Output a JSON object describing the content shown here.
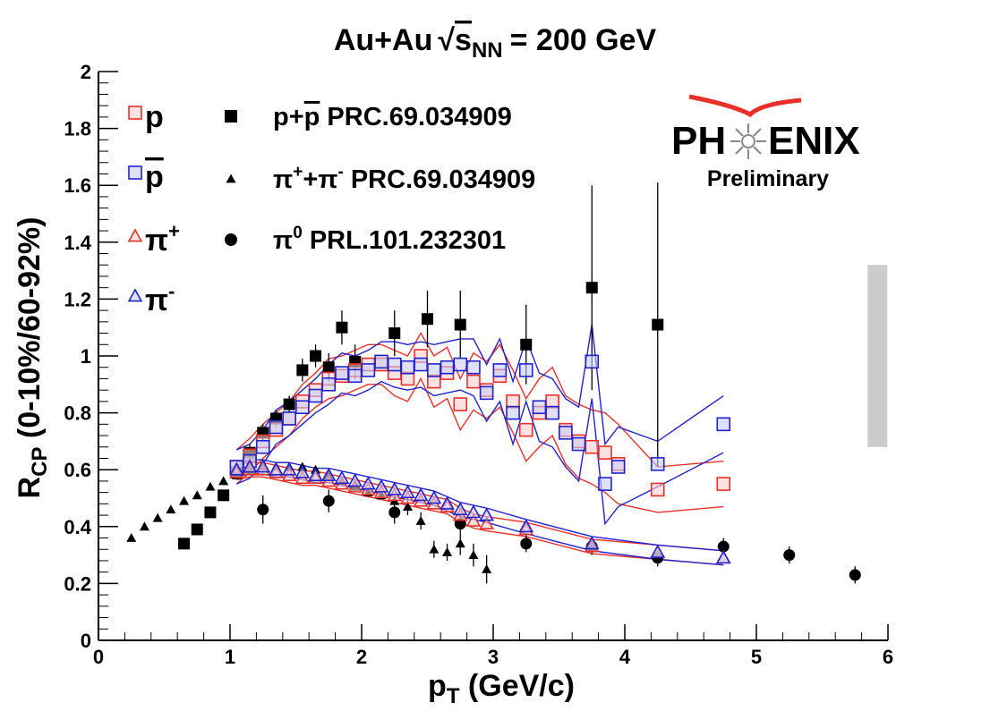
{
  "title": {
    "prefix": "Au+Au",
    "sqrt_s": "s",
    "sub": "NN",
    "suffix": "= 200 GeV"
  },
  "axes": {
    "x_label": {
      "main": "p",
      "sub": "T",
      "rest": " (GeV/c)"
    },
    "y_label": {
      "main": "R",
      "sub": "CP",
      "rest": " (0-10%/60-92%)"
    }
  },
  "logo": {
    "left": "PH",
    "right": "ENIX",
    "sub": "Preliminary",
    "color": "#e8302a"
  },
  "colors": {
    "red": "#e8302a",
    "blue": "#2222cc",
    "grey": "#cccccc",
    "black": "#000000"
  },
  "chart_data": {
    "type": "scatter",
    "xlim": [
      0,
      6
    ],
    "ylim": [
      0,
      2
    ],
    "x_ticks": [
      "0",
      "1",
      "2",
      "3",
      "4",
      "5",
      "6"
    ],
    "y_ticks": [
      "0",
      "0.2",
      "0.4",
      "0.6",
      "0.8",
      "1",
      "1.2",
      "1.4",
      "1.6",
      "1.8",
      "2"
    ],
    "grid": false,
    "legend_left": [
      {
        "label": "p",
        "marker": "open-square",
        "color": "#e8302a",
        "bar": false,
        "sup": ""
      },
      {
        "label": "p",
        "marker": "open-square",
        "color": "#2222cc",
        "bar": true,
        "sup": ""
      },
      {
        "label": "π",
        "marker": "open-triangle",
        "color": "#e8302a",
        "bar": false,
        "sup": "+"
      },
      {
        "label": "π",
        "marker": "open-triangle",
        "color": "#2222cc",
        "bar": false,
        "sup": "-"
      }
    ],
    "legend_right": [
      {
        "marker": "filled-square",
        "text1": "p+",
        "bar_p": "p",
        "text2": " PRC.69.034909"
      },
      {
        "marker": "filled-triangle",
        "text1": "π",
        "sup1": "+",
        "text2": "+π",
        "sup2": "-",
        "text3": " PRC.69.034909"
      },
      {
        "marker": "filled-circle",
        "text1": "π",
        "sup1": "0",
        "text2": " PRL.101.232301"
      }
    ],
    "systematic_box": {
      "x": 5.92,
      "y_low": 0.68,
      "y_high": 1.32
    },
    "series": [
      {
        "name": "p+p̄ PRC.69.034909",
        "marker": "filled-square",
        "color": "#000000",
        "points": [
          {
            "x": 0.65,
            "y": 0.34,
            "err": 0.02
          },
          {
            "x": 0.75,
            "y": 0.39,
            "err": 0.02
          },
          {
            "x": 0.85,
            "y": 0.45,
            "err": 0.02
          },
          {
            "x": 0.95,
            "y": 0.51,
            "err": 0.02
          },
          {
            "x": 1.05,
            "y": 0.59,
            "err": 0.02
          },
          {
            "x": 1.15,
            "y": 0.66,
            "err": 0.03
          },
          {
            "x": 1.25,
            "y": 0.73,
            "err": 0.03
          },
          {
            "x": 1.35,
            "y": 0.78,
            "err": 0.03
          },
          {
            "x": 1.45,
            "y": 0.83,
            "err": 0.03
          },
          {
            "x": 1.55,
            "y": 0.95,
            "err": 0.04
          },
          {
            "x": 1.65,
            "y": 1.0,
            "err": 0.04
          },
          {
            "x": 1.75,
            "y": 0.96,
            "err": 0.05
          },
          {
            "x": 1.85,
            "y": 1.1,
            "err": 0.06
          },
          {
            "x": 1.95,
            "y": 0.98,
            "err": 0.06
          },
          {
            "x": 2.25,
            "y": 1.08,
            "err": 0.08
          },
          {
            "x": 2.5,
            "y": 1.13,
            "err": 0.1
          },
          {
            "x": 2.75,
            "y": 1.11,
            "err": 0.12
          },
          {
            "x": 3.25,
            "y": 1.04,
            "err": 0.14
          },
          {
            "x": 3.75,
            "y": 1.24,
            "err": 0.36
          },
          {
            "x": 4.25,
            "y": 1.11,
            "err": 0.5
          }
        ]
      },
      {
        "name": "π⁺+π⁻ PRC.69.034909",
        "marker": "filled-triangle",
        "color": "#000000",
        "points": [
          {
            "x": 0.25,
            "y": 0.36,
            "err": 0.0
          },
          {
            "x": 0.35,
            "y": 0.4,
            "err": 0.0
          },
          {
            "x": 0.45,
            "y": 0.43,
            "err": 0.0
          },
          {
            "x": 0.55,
            "y": 0.46,
            "err": 0.0
          },
          {
            "x": 0.65,
            "y": 0.49,
            "err": 0.0
          },
          {
            "x": 0.75,
            "y": 0.51,
            "err": 0.0
          },
          {
            "x": 0.85,
            "y": 0.54,
            "err": 0.0
          },
          {
            "x": 0.95,
            "y": 0.56,
            "err": 0.0
          },
          {
            "x": 1.05,
            "y": 0.58,
            "err": 0.0
          },
          {
            "x": 1.15,
            "y": 0.6,
            "err": 0.0
          },
          {
            "x": 1.25,
            "y": 0.61,
            "err": 0.0
          },
          {
            "x": 1.35,
            "y": 0.61,
            "err": 0.0
          },
          {
            "x": 1.45,
            "y": 0.61,
            "err": 0.0
          },
          {
            "x": 1.55,
            "y": 0.61,
            "err": 0.0
          },
          {
            "x": 1.65,
            "y": 0.6,
            "err": 0.0
          },
          {
            "x": 1.75,
            "y": 0.58,
            "err": 0.0
          },
          {
            "x": 1.85,
            "y": 0.56,
            "err": 0.0
          },
          {
            "x": 1.95,
            "y": 0.54,
            "err": 0.0
          },
          {
            "x": 2.05,
            "y": 0.52,
            "err": 0.0
          },
          {
            "x": 2.15,
            "y": 0.51,
            "err": 0.0
          },
          {
            "x": 2.25,
            "y": 0.49,
            "err": 0.0
          },
          {
            "x": 2.35,
            "y": 0.47,
            "err": 0.03
          },
          {
            "x": 2.45,
            "y": 0.42,
            "err": 0.03
          },
          {
            "x": 2.55,
            "y": 0.32,
            "err": 0.03
          },
          {
            "x": 2.65,
            "y": 0.31,
            "err": 0.03
          },
          {
            "x": 2.75,
            "y": 0.34,
            "err": 0.04
          },
          {
            "x": 2.85,
            "y": 0.3,
            "err": 0.04
          },
          {
            "x": 2.95,
            "y": 0.25,
            "err": 0.05
          }
        ]
      },
      {
        "name": "π⁰ PRL.101.232301",
        "marker": "filled-circle",
        "color": "#000000",
        "points": [
          {
            "x": 1.25,
            "y": 0.46,
            "err": 0.05
          },
          {
            "x": 1.75,
            "y": 0.49,
            "err": 0.04
          },
          {
            "x": 2.25,
            "y": 0.45,
            "err": 0.04
          },
          {
            "x": 2.75,
            "y": 0.41,
            "err": 0.03
          },
          {
            "x": 3.25,
            "y": 0.34,
            "err": 0.03
          },
          {
            "x": 3.75,
            "y": 0.33,
            "err": 0.03
          },
          {
            "x": 4.25,
            "y": 0.29,
            "err": 0.03
          },
          {
            "x": 4.75,
            "y": 0.33,
            "err": 0.03
          },
          {
            "x": 5.25,
            "y": 0.3,
            "err": 0.03
          },
          {
            "x": 5.75,
            "y": 0.23,
            "err": 0.03
          }
        ]
      },
      {
        "name": "p",
        "marker": "open-square",
        "color": "#e8302a",
        "points": [
          {
            "x": 1.05,
            "y": 0.61,
            "err": 0.02
          },
          {
            "x": 1.15,
            "y": 0.65,
            "err": 0.02
          },
          {
            "x": 1.25,
            "y": 0.7,
            "err": 0.02
          },
          {
            "x": 1.35,
            "y": 0.74,
            "err": 0.02
          },
          {
            "x": 1.45,
            "y": 0.78,
            "err": 0.02
          },
          {
            "x": 1.55,
            "y": 0.84,
            "err": 0.02
          },
          {
            "x": 1.65,
            "y": 0.88,
            "err": 0.02
          },
          {
            "x": 1.75,
            "y": 0.92,
            "err": 0.03
          },
          {
            "x": 1.85,
            "y": 0.93,
            "err": 0.03
          },
          {
            "x": 1.95,
            "y": 0.95,
            "err": 0.03
          },
          {
            "x": 2.05,
            "y": 0.97,
            "err": 0.03
          },
          {
            "x": 2.15,
            "y": 0.97,
            "err": 0.03
          },
          {
            "x": 2.25,
            "y": 0.94,
            "err": 0.04
          },
          {
            "x": 2.35,
            "y": 0.92,
            "err": 0.04
          },
          {
            "x": 2.45,
            "y": 1.0,
            "err": 0.04
          },
          {
            "x": 2.55,
            "y": 0.91,
            "err": 0.05
          },
          {
            "x": 2.65,
            "y": 0.94,
            "err": 0.05
          },
          {
            "x": 2.75,
            "y": 0.83,
            "err": 0.05
          },
          {
            "x": 2.85,
            "y": 0.91,
            "err": 0.06
          },
          {
            "x": 2.95,
            "y": 0.88,
            "err": 0.06
          },
          {
            "x": 3.05,
            "y": 0.93,
            "err": 0.07
          },
          {
            "x": 3.15,
            "y": 0.84,
            "err": 0.07
          },
          {
            "x": 3.25,
            "y": 0.74,
            "err": 0.07
          },
          {
            "x": 3.35,
            "y": 0.8,
            "err": 0.08
          },
          {
            "x": 3.45,
            "y": 0.84,
            "err": 0.08
          },
          {
            "x": 3.55,
            "y": 0.74,
            "err": 0.08
          },
          {
            "x": 3.65,
            "y": 0.7,
            "err": 0.09
          },
          {
            "x": 3.75,
            "y": 0.68,
            "err": 0.09
          },
          {
            "x": 3.85,
            "y": 0.66,
            "err": 0.1
          },
          {
            "x": 3.95,
            "y": 0.62,
            "err": 0.1
          },
          {
            "x": 4.25,
            "y": 0.53,
            "err": 0.04
          },
          {
            "x": 4.75,
            "y": 0.55,
            "err": 0.04
          }
        ]
      },
      {
        "name": "p̄",
        "marker": "open-square",
        "color": "#2222cc",
        "points": [
          {
            "x": 1.05,
            "y": 0.61,
            "err": 0.02
          },
          {
            "x": 1.15,
            "y": 0.63,
            "err": 0.02
          },
          {
            "x": 1.25,
            "y": 0.68,
            "err": 0.02
          },
          {
            "x": 1.35,
            "y": 0.75,
            "err": 0.02
          },
          {
            "x": 1.45,
            "y": 0.78,
            "err": 0.02
          },
          {
            "x": 1.55,
            "y": 0.82,
            "err": 0.02
          },
          {
            "x": 1.65,
            "y": 0.86,
            "err": 0.02
          },
          {
            "x": 1.75,
            "y": 0.9,
            "err": 0.03
          },
          {
            "x": 1.85,
            "y": 0.94,
            "err": 0.03
          },
          {
            "x": 1.95,
            "y": 0.93,
            "err": 0.03
          },
          {
            "x": 2.05,
            "y": 0.95,
            "err": 0.03
          },
          {
            "x": 2.15,
            "y": 0.98,
            "err": 0.03
          },
          {
            "x": 2.25,
            "y": 0.97,
            "err": 0.04
          },
          {
            "x": 2.35,
            "y": 0.96,
            "err": 0.04
          },
          {
            "x": 2.45,
            "y": 0.97,
            "err": 0.04
          },
          {
            "x": 2.55,
            "y": 0.95,
            "err": 0.05
          },
          {
            "x": 2.65,
            "y": 0.96,
            "err": 0.05
          },
          {
            "x": 2.75,
            "y": 0.97,
            "err": 0.05
          },
          {
            "x": 2.85,
            "y": 0.96,
            "err": 0.06
          },
          {
            "x": 2.95,
            "y": 0.87,
            "err": 0.06
          },
          {
            "x": 3.05,
            "y": 0.95,
            "err": 0.07
          },
          {
            "x": 3.15,
            "y": 0.8,
            "err": 0.07
          },
          {
            "x": 3.25,
            "y": 0.95,
            "err": 0.07
          },
          {
            "x": 3.35,
            "y": 0.82,
            "err": 0.08
          },
          {
            "x": 3.45,
            "y": 0.8,
            "err": 0.08
          },
          {
            "x": 3.55,
            "y": 0.73,
            "err": 0.08
          },
          {
            "x": 3.65,
            "y": 0.69,
            "err": 0.09
          },
          {
            "x": 3.75,
            "y": 0.98,
            "err": 0.09
          },
          {
            "x": 3.85,
            "y": 0.55,
            "err": 0.1
          },
          {
            "x": 3.95,
            "y": 0.61,
            "err": 0.1
          },
          {
            "x": 4.25,
            "y": 0.62,
            "err": 0.04
          },
          {
            "x": 4.75,
            "y": 0.76,
            "err": 0.06
          }
        ]
      },
      {
        "name": "π⁺",
        "marker": "open-triangle",
        "color": "#e8302a",
        "points": [
          {
            "x": 1.05,
            "y": 0.59
          },
          {
            "x": 1.15,
            "y": 0.6
          },
          {
            "x": 1.25,
            "y": 0.6
          },
          {
            "x": 1.35,
            "y": 0.59
          },
          {
            "x": 1.45,
            "y": 0.58
          },
          {
            "x": 1.55,
            "y": 0.57
          },
          {
            "x": 1.65,
            "y": 0.57
          },
          {
            "x": 1.75,
            "y": 0.56
          },
          {
            "x": 1.85,
            "y": 0.55
          },
          {
            "x": 1.95,
            "y": 0.54
          },
          {
            "x": 2.05,
            "y": 0.53
          },
          {
            "x": 2.15,
            "y": 0.52
          },
          {
            "x": 2.25,
            "y": 0.51
          },
          {
            "x": 2.35,
            "y": 0.5
          },
          {
            "x": 2.45,
            "y": 0.49
          },
          {
            "x": 2.55,
            "y": 0.48
          },
          {
            "x": 2.65,
            "y": 0.47
          },
          {
            "x": 2.75,
            "y": 0.44
          },
          {
            "x": 2.85,
            "y": 0.42
          },
          {
            "x": 2.95,
            "y": 0.41
          },
          {
            "x": 3.25,
            "y": 0.39
          },
          {
            "x": 3.75,
            "y": 0.33
          },
          {
            "x": 4.25,
            "y": 0.31
          },
          {
            "x": 4.75,
            "y": 0.29
          }
        ]
      },
      {
        "name": "π⁻",
        "marker": "open-triangle",
        "color": "#2222cc",
        "points": [
          {
            "x": 1.05,
            "y": 0.6
          },
          {
            "x": 1.15,
            "y": 0.61
          },
          {
            "x": 1.25,
            "y": 0.61
          },
          {
            "x": 1.35,
            "y": 0.6
          },
          {
            "x": 1.45,
            "y": 0.6
          },
          {
            "x": 1.55,
            "y": 0.59
          },
          {
            "x": 1.65,
            "y": 0.58
          },
          {
            "x": 1.75,
            "y": 0.58
          },
          {
            "x": 1.85,
            "y": 0.57
          },
          {
            "x": 1.95,
            "y": 0.56
          },
          {
            "x": 2.05,
            "y": 0.55
          },
          {
            "x": 2.15,
            "y": 0.54
          },
          {
            "x": 2.25,
            "y": 0.53
          },
          {
            "x": 2.35,
            "y": 0.52
          },
          {
            "x": 2.45,
            "y": 0.51
          },
          {
            "x": 2.55,
            "y": 0.5
          },
          {
            "x": 2.65,
            "y": 0.48
          },
          {
            "x": 2.75,
            "y": 0.46
          },
          {
            "x": 2.85,
            "y": 0.45
          },
          {
            "x": 2.95,
            "y": 0.44
          },
          {
            "x": 3.25,
            "y": 0.4
          },
          {
            "x": 3.75,
            "y": 0.34
          },
          {
            "x": 4.25,
            "y": 0.31
          },
          {
            "x": 4.75,
            "y": 0.29
          }
        ]
      }
    ]
  }
}
